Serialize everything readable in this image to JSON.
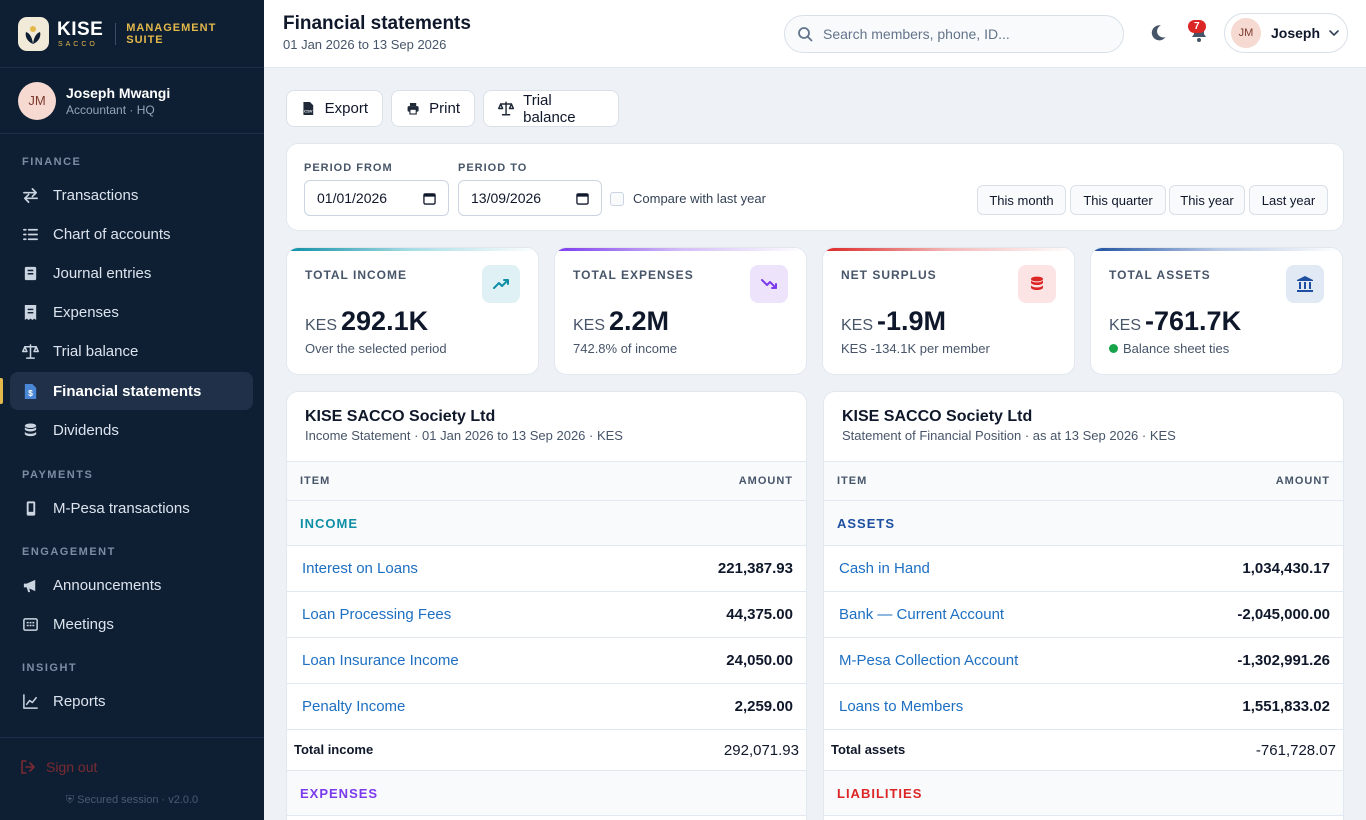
{
  "brand": {
    "name": "KISE",
    "sub": "SACCO",
    "suite": "MANAGEMENT SUITE"
  },
  "profile": {
    "initials": "JM",
    "name": "Joseph Mwangi",
    "role": "Accountant · HQ"
  },
  "nav": {
    "finance_label": "FINANCE",
    "payments_label": "PAYMENTS",
    "engagement_label": "ENGAGEMENT",
    "insight_label": "INSIGHT",
    "transactions": "Transactions",
    "chart_of_accounts": "Chart of accounts",
    "journal_entries": "Journal entries",
    "expenses": "Expenses",
    "trial_balance": "Trial balance",
    "financial_statements": "Financial statements",
    "dividends": "Dividends",
    "mpesa": "M-Pesa transactions",
    "announcements": "Announcements",
    "meetings": "Meetings",
    "reports": "Reports"
  },
  "footer": {
    "signout": "Sign out",
    "secured": "Secured session · v2.0.0"
  },
  "header": {
    "title": "Financial statements",
    "subtitle": "01 Jan 2026 to 13 Sep 2026",
    "search_placeholder": "Search members, phone, ID...",
    "notifications": "7",
    "user_initials": "JM",
    "user_name": "Joseph"
  },
  "toolbar": {
    "export": "Export",
    "print": "Print",
    "trial_balance": "Trial balance"
  },
  "period": {
    "from_label": "PERIOD FROM",
    "from_value": "01/01/2026",
    "to_label": "PERIOD TO",
    "to_value": "13/09/2026",
    "compare_label": "Compare with last year",
    "presets": [
      "This month",
      "This quarter",
      "This year",
      "Last year"
    ]
  },
  "kpis": [
    {
      "label": "TOTAL INCOME",
      "currency": "KES",
      "value": "292.1K",
      "sub": "Over the selected period",
      "accent": "#0e8fa6"
    },
    {
      "label": "TOTAL EXPENSES",
      "currency": "KES",
      "value": "2.2M",
      "sub": "742.8% of income",
      "accent": "#7c3aed"
    },
    {
      "label": "NET SURPLUS",
      "currency": "KES",
      "value": "-1.9M",
      "sub": "KES -134.1K per member",
      "accent": "#dc2626"
    },
    {
      "label": "TOTAL ASSETS",
      "currency": "KES",
      "value": "-761.7K",
      "sub": "Balance sheet ties",
      "accent": "#1e4fa0"
    }
  ],
  "income_statement": {
    "org": "KISE SACCO Society Ltd",
    "desc": "Income Statement · 01 Jan 2026 to 13 Sep 2026 · KES",
    "col_item": "ITEM",
    "col_amount": "AMOUNT",
    "section1": "INCOME",
    "rows": [
      {
        "item": "Interest on Loans",
        "amount": "221,387.93"
      },
      {
        "item": "Loan Processing Fees",
        "amount": "44,375.00"
      },
      {
        "item": "Loan Insurance Income",
        "amount": "24,050.00"
      },
      {
        "item": "Penalty Income",
        "amount": "2,259.00"
      }
    ],
    "total_label": "Total income",
    "total_amount": "292,071.93",
    "section2": "EXPENSES"
  },
  "financial_position": {
    "org": "KISE SACCO Society Ltd",
    "desc": "Statement of Financial Position · as at 13 Sep 2026 · KES",
    "col_item": "ITEM",
    "col_amount": "AMOUNT",
    "section1": "ASSETS",
    "rows": [
      {
        "item": "Cash in Hand",
        "amount": "1,034,430.17"
      },
      {
        "item": "Bank — Current Account",
        "amount": "-2,045,000.00"
      },
      {
        "item": "M-Pesa Collection Account",
        "amount": "-1,302,991.26"
      },
      {
        "item": "Loans to Members",
        "amount": "1,551,833.02"
      }
    ],
    "total_label": "Total assets",
    "total_amount": "-761,728.07",
    "section2": "LIABILITIES"
  },
  "colors": {
    "sidebar": "#0f1f33",
    "accent_gold": "#e2b84a",
    "link": "#1d6fc2",
    "income": "#0e8fa6",
    "expenses": "#7c3aed",
    "assets": "#1e4fa0",
    "liabilities": "#dc2626"
  }
}
